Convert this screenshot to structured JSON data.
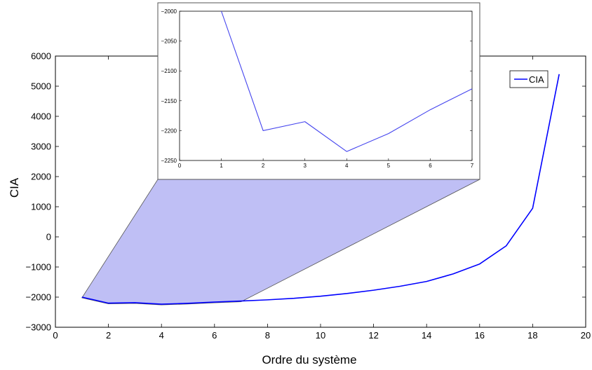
{
  "chart_data": [
    {
      "type": "line",
      "title": "",
      "xlabel": "Ordre du système",
      "ylabel": "CIA",
      "xlim": [
        0,
        20
      ],
      "ylim": [
        -3000,
        6000
      ],
      "xticks": [
        0,
        2,
        4,
        6,
        8,
        10,
        12,
        14,
        16,
        18,
        20
      ],
      "yticks": [
        -3000,
        -2000,
        -1000,
        0,
        1000,
        2000,
        3000,
        4000,
        5000,
        6000
      ],
      "grid": false,
      "legend": {
        "position": "top-right",
        "entries": [
          "CIA"
        ]
      },
      "series": [
        {
          "name": "CIA",
          "color": "#0000ff",
          "x": [
            1,
            2,
            3,
            4,
            5,
            6,
            7,
            8,
            9,
            10,
            11,
            12,
            13,
            14,
            15,
            16,
            17,
            18,
            19
          ],
          "y": [
            -2000,
            -2200,
            -2185,
            -2235,
            -2205,
            -2165,
            -2130,
            -2090,
            -2040,
            -1970,
            -1880,
            -1770,
            -1640,
            -1480,
            -1230,
            -900,
            -300,
            950,
            5400
          ]
        }
      ],
      "zoom_highlight_color": "#bfbff5"
    },
    {
      "type": "line",
      "title": "",
      "xlabel": "",
      "ylabel": "",
      "xlim": [
        0,
        7
      ],
      "ylim": [
        -2250,
        -2000
      ],
      "xticks": [
        0,
        1,
        2,
        3,
        4,
        5,
        6,
        7
      ],
      "yticks": [
        -2250,
        -2200,
        -2150,
        -2100,
        -2050,
        -2000
      ],
      "grid": false,
      "series": [
        {
          "color": "#4444ee",
          "x": [
            1,
            2,
            3,
            4,
            5,
            6,
            7
          ],
          "y": [
            -2000,
            -2200,
            -2185,
            -2235,
            -2205,
            -2165,
            -2130
          ]
        }
      ]
    }
  ]
}
